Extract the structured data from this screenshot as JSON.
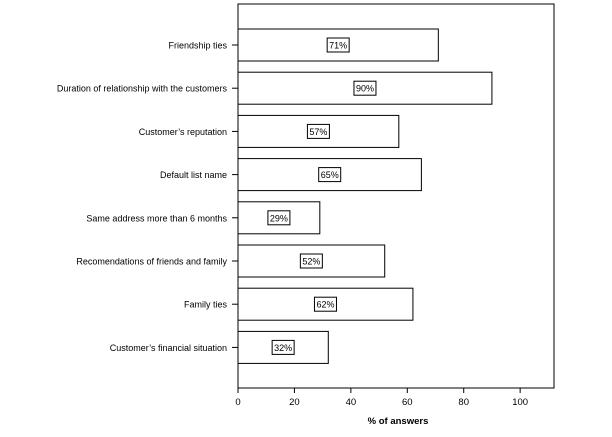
{
  "chart_data": {
    "type": "bar",
    "orientation": "horizontal",
    "categories": [
      "Friendship ties",
      "Duration of relationship with the customers",
      "Customer’s reputation",
      "Default list name",
      "Same address more than 6 months",
      "Recomendations of friends and family",
      "Family ties",
      "Customer’s financial situation"
    ],
    "values": [
      71,
      90,
      57,
      65,
      29,
      52,
      62,
      32
    ],
    "data_labels": [
      "71%",
      "90%",
      "57%",
      "65%",
      "29%",
      "52%",
      "62%",
      "32%"
    ],
    "title": "",
    "xlabel": "% of answers",
    "ylabel": "",
    "xlim": [
      0,
      112
    ],
    "xticks": [
      0,
      20,
      40,
      60,
      80,
      100
    ],
    "xtick_labels": [
      "0",
      "20",
      "40",
      "60",
      "80",
      "100"
    ],
    "grid": false,
    "legend": "none",
    "colors": {
      "bar_fill": "#ffffff",
      "bar_stroke": "#000000",
      "axis": "#000000",
      "text": "#000000"
    }
  }
}
